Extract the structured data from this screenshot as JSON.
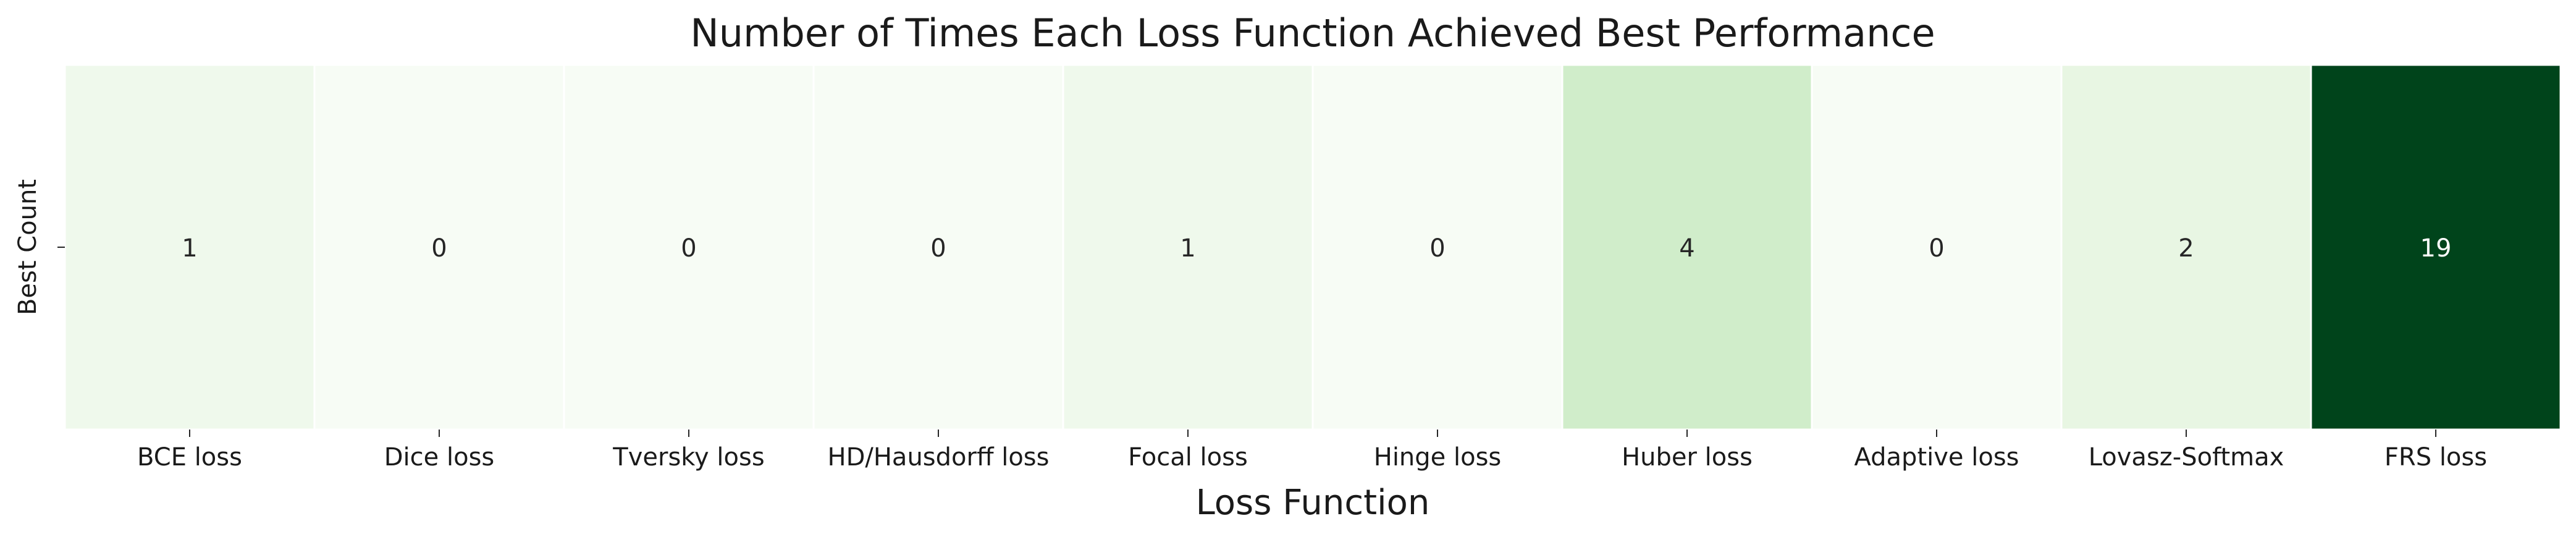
{
  "chart_data": {
    "type": "heatmap",
    "title": "Number of Times Each Loss Function Achieved Best Performance",
    "xlabel": "Loss Function",
    "ylabel": "",
    "row_labels": [
      "Best Count"
    ],
    "categories": [
      "BCE loss",
      "Dice loss",
      "Tversky loss",
      "HD/Hausdorff loss",
      "Focal loss",
      "Hinge loss",
      "Huber loss",
      "Adaptive loss",
      "Lovasz-Softmax",
      "FRS loss"
    ],
    "values": [
      [
        1,
        0,
        0,
        0,
        1,
        0,
        4,
        0,
        2,
        19
      ]
    ],
    "value_range": [
      0,
      19
    ],
    "colormap": "Greens",
    "colors": {
      "low": "#f7fcf5",
      "high": "#00441b",
      "text_dark": "#262626",
      "text_light": "#ffffff",
      "cell_border": "#ffffff"
    },
    "colorbar": false,
    "grid": false
  }
}
